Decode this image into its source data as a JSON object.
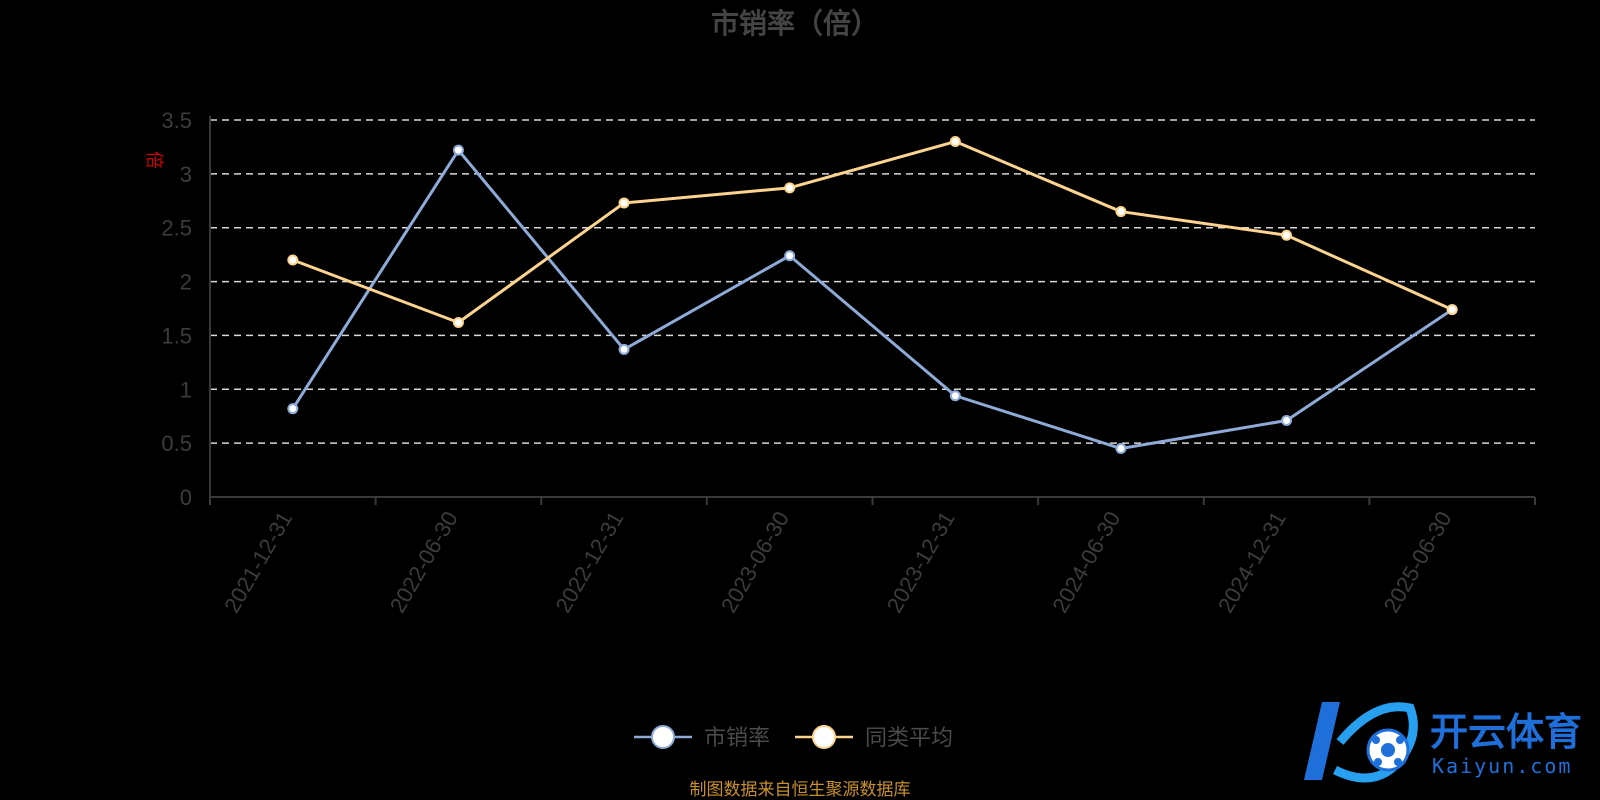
{
  "chart_data": {
    "type": "line",
    "title": "市销率（倍）",
    "ylabel": "倍",
    "xlabel": "",
    "categories": [
      "2021-12-31",
      "2022-06-30",
      "2022-12-31",
      "2023-06-30",
      "2023-12-31",
      "2024-06-30",
      "2024-12-31",
      "2025-06-30"
    ],
    "series": [
      {
        "name": "市销率",
        "values": [
          0.82,
          3.22,
          1.37,
          2.24,
          0.94,
          0.45,
          0.71,
          1.74
        ],
        "color": "#8eabd8"
      },
      {
        "name": "同类平均",
        "values": [
          2.2,
          1.62,
          2.73,
          2.87,
          3.3,
          2.65,
          2.43,
          1.74
        ],
        "color": "#fcd38f"
      }
    ],
    "ylim": [
      0,
      3.5
    ],
    "yticks": [
      "0",
      "0.5",
      "1",
      "1.5",
      "2",
      "2.5",
      "3",
      "3.5"
    ],
    "grid": true,
    "legend_position": "bottom-center"
  },
  "source_note": "制图数据来自恒生聚源数据库",
  "watermark": {
    "name": "开云体育",
    "domain": "Kaiyun.com"
  }
}
